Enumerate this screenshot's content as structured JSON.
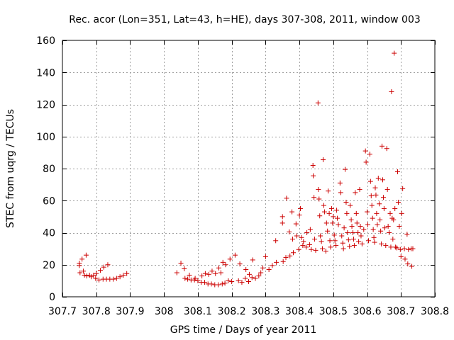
{
  "chart_data": {
    "type": "scatter",
    "title": "Rec. acor (Lon=351, Lat=43, h=HE), days 307-308, 2011, window 003",
    "xlabel": "GPS time / Days of year 2011",
    "ylabel": "STEC from uqrg / TECUs",
    "xlim": [
      307.7,
      308.8
    ],
    "ylim": [
      0,
      160
    ],
    "xticks": [
      "307.7",
      "307.8",
      "307.9",
      "308",
      "308.1",
      "308.2",
      "308.3",
      "308.4",
      "308.5",
      "308.6",
      "308.7",
      "308.8"
    ],
    "yticks": [
      "0",
      "20",
      "40",
      "60",
      "80",
      "100",
      "120",
      "140",
      "160"
    ],
    "grid": true,
    "marker": "+",
    "color": "#cc0000",
    "series": [
      {
        "name": "STEC",
        "points": [
          [
            307.75,
            21.0
          ],
          [
            307.75,
            19.5
          ],
          [
            307.752,
            15.0
          ],
          [
            307.758,
            23.5
          ],
          [
            307.762,
            16.0
          ],
          [
            307.765,
            13.5
          ],
          [
            307.77,
            26.0
          ],
          [
            307.772,
            13.0
          ],
          [
            307.78,
            13.5
          ],
          [
            307.785,
            12.5
          ],
          [
            307.792,
            13.5
          ],
          [
            307.798,
            11.5
          ],
          [
            307.8,
            14.5
          ],
          [
            307.808,
            10.5
          ],
          [
            307.812,
            16.5
          ],
          [
            307.82,
            11.0
          ],
          [
            307.822,
            18.5
          ],
          [
            307.83,
            11.0
          ],
          [
            307.834,
            20.0
          ],
          [
            307.84,
            11.0
          ],
          [
            307.85,
            11.0
          ],
          [
            307.86,
            11.5
          ],
          [
            307.87,
            12.5
          ],
          [
            307.88,
            13.5
          ],
          [
            307.89,
            14.5
          ],
          [
            308.038,
            15.0
          ],
          [
            308.05,
            21.0
          ],
          [
            308.06,
            17.5
          ],
          [
            308.062,
            11.5
          ],
          [
            308.07,
            11.0
          ],
          [
            308.075,
            13.5
          ],
          [
            308.08,
            10.5
          ],
          [
            308.09,
            10.5
          ],
          [
            308.092,
            11.5
          ],
          [
            308.1,
            10.0
          ],
          [
            308.11,
            9.0
          ],
          [
            308.112,
            13.0
          ],
          [
            308.12,
            9.0
          ],
          [
            308.122,
            14.5
          ],
          [
            308.13,
            8.0
          ],
          [
            308.132,
            14.0
          ],
          [
            308.14,
            8.0
          ],
          [
            308.142,
            16.0
          ],
          [
            308.15,
            7.5
          ],
          [
            308.152,
            14.5
          ],
          [
            308.16,
            7.5
          ],
          [
            308.162,
            18.0
          ],
          [
            308.168,
            15.0
          ],
          [
            308.172,
            8.0
          ],
          [
            308.174,
            21.5
          ],
          [
            308.18,
            8.5
          ],
          [
            308.182,
            20.0
          ],
          [
            308.19,
            10.0
          ],
          [
            308.195,
            23.5
          ],
          [
            308.2,
            9.5
          ],
          [
            308.21,
            26.0
          ],
          [
            308.22,
            10.0
          ],
          [
            308.224,
            20.5
          ],
          [
            308.23,
            9.0
          ],
          [
            308.24,
            11.5
          ],
          [
            308.242,
            17.0
          ],
          [
            308.25,
            9.5
          ],
          [
            308.252,
            14.0
          ],
          [
            308.26,
            12.0
          ],
          [
            308.262,
            23.0
          ],
          [
            308.27,
            11.5
          ],
          [
            308.28,
            13.0
          ],
          [
            308.286,
            15.0
          ],
          [
            308.292,
            18.0
          ],
          [
            308.3,
            25.0
          ],
          [
            308.31,
            17.0
          ],
          [
            308.32,
            19.5
          ],
          [
            308.33,
            35.0
          ],
          [
            308.332,
            21.5
          ],
          [
            308.35,
            50.0
          ],
          [
            308.35,
            46.0
          ],
          [
            308.352,
            22.0
          ],
          [
            308.362,
            61.5
          ],
          [
            308.36,
            24.5
          ],
          [
            308.37,
            40.5
          ],
          [
            308.372,
            25.5
          ],
          [
            308.378,
            53.0
          ],
          [
            308.38,
            36.0
          ],
          [
            308.382,
            27.5
          ],
          [
            308.39,
            45.5
          ],
          [
            308.392,
            38.0
          ],
          [
            308.398,
            29.5
          ],
          [
            308.4,
            51.0
          ],
          [
            308.403,
            55.0
          ],
          [
            308.406,
            37.0
          ],
          [
            308.41,
            32.0
          ],
          [
            308.412,
            34.5
          ],
          [
            308.42,
            31.0
          ],
          [
            308.422,
            40.0
          ],
          [
            308.43,
            32.5
          ],
          [
            308.432,
            42.0
          ],
          [
            308.435,
            29.5
          ],
          [
            308.44,
            82.0
          ],
          [
            308.441,
            75.5
          ],
          [
            308.443,
            62.0
          ],
          [
            308.445,
            36.0
          ],
          [
            308.448,
            29.0
          ],
          [
            308.455,
            121.0
          ],
          [
            308.456,
            67.0
          ],
          [
            308.458,
            61.0
          ],
          [
            308.46,
            50.5
          ],
          [
            308.462,
            38.0
          ],
          [
            308.465,
            34.5
          ],
          [
            308.468,
            30.0
          ],
          [
            308.47,
            85.5
          ],
          [
            308.472,
            57.0
          ],
          [
            308.474,
            53.0
          ],
          [
            308.478,
            28.5
          ],
          [
            308.48,
            46.0
          ],
          [
            308.483,
            41.0
          ],
          [
            308.485,
            66.0
          ],
          [
            308.488,
            52.0
          ],
          [
            308.49,
            35.0
          ],
          [
            308.492,
            31.0
          ],
          [
            308.495,
            55.0
          ],
          [
            308.498,
            46.0
          ],
          [
            308.5,
            50.0
          ],
          [
            308.503,
            38.5
          ],
          [
            308.505,
            35.0
          ],
          [
            308.508,
            32.0
          ],
          [
            308.51,
            54.0
          ],
          [
            308.512,
            49.0
          ],
          [
            308.515,
            45.0
          ],
          [
            308.52,
            71.0
          ],
          [
            308.522,
            65.0
          ],
          [
            308.525,
            38.0
          ],
          [
            308.528,
            33.5
          ],
          [
            308.53,
            30.0
          ],
          [
            308.532,
            43.0
          ],
          [
            308.535,
            79.5
          ],
          [
            308.538,
            59.0
          ],
          [
            308.54,
            52.0
          ],
          [
            308.542,
            40.0
          ],
          [
            308.545,
            35.5
          ],
          [
            308.548,
            31.5
          ],
          [
            308.55,
            57.0
          ],
          [
            308.553,
            48.0
          ],
          [
            308.555,
            44.0
          ],
          [
            308.558,
            40.0
          ],
          [
            308.56,
            36.0
          ],
          [
            308.562,
            32.0
          ],
          [
            308.565,
            65.0
          ],
          [
            308.568,
            52.0
          ],
          [
            308.57,
            46.0
          ],
          [
            308.573,
            40.0
          ],
          [
            308.575,
            34.5
          ],
          [
            308.578,
            67.0
          ],
          [
            308.58,
            44.0
          ],
          [
            308.582,
            38.0
          ],
          [
            308.585,
            33.0
          ],
          [
            308.59,
            42.0
          ],
          [
            308.595,
            91.0
          ],
          [
            308.597,
            84.0
          ],
          [
            308.6,
            53.0
          ],
          [
            308.602,
            45.0
          ],
          [
            308.604,
            35.0
          ],
          [
            308.608,
            89.0
          ],
          [
            308.61,
            72.0
          ],
          [
            308.612,
            63.0
          ],
          [
            308.614,
            57.0
          ],
          [
            308.616,
            49.0
          ],
          [
            308.618,
            42.0
          ],
          [
            308.62,
            37.0
          ],
          [
            308.622,
            34.0
          ],
          [
            308.624,
            68.0
          ],
          [
            308.626,
            63.5
          ],
          [
            308.628,
            52.0
          ],
          [
            308.63,
            45.0
          ],
          [
            308.633,
            74.0
          ],
          [
            308.636,
            58.0
          ],
          [
            308.638,
            48.0
          ],
          [
            308.64,
            41.0
          ],
          [
            308.642,
            33.0
          ],
          [
            308.644,
            94.0
          ],
          [
            308.646,
            73.0
          ],
          [
            308.648,
            62.0
          ],
          [
            308.65,
            55.0
          ],
          [
            308.652,
            43.0
          ],
          [
            308.655,
            32.0
          ],
          [
            308.658,
            92.5
          ],
          [
            308.66,
            67.0
          ],
          [
            308.662,
            44.0
          ],
          [
            308.665,
            40.0
          ],
          [
            308.668,
            52.0
          ],
          [
            308.67,
            31.0
          ],
          [
            308.672,
            128.0
          ],
          [
            308.674,
            49.0
          ],
          [
            308.676,
            36.0
          ],
          [
            308.678,
            48.0
          ],
          [
            308.68,
            152.0
          ],
          [
            308.682,
            55.0
          ],
          [
            308.684,
            31.0
          ],
          [
            308.688,
            30.5
          ],
          [
            308.69,
            78.0
          ],
          [
            308.692,
            59.0
          ],
          [
            308.695,
            44.0
          ],
          [
            308.698,
            29.5
          ],
          [
            308.7,
            25.0
          ],
          [
            308.702,
            52.0
          ],
          [
            308.705,
            67.5
          ],
          [
            308.71,
            30.0
          ],
          [
            308.712,
            23.5
          ],
          [
            308.718,
            39.0
          ],
          [
            308.72,
            20.5
          ],
          [
            308.722,
            29.5
          ],
          [
            308.73,
            30.0
          ],
          [
            308.732,
            19.0
          ],
          [
            308.735,
            30.0
          ]
        ]
      }
    ]
  }
}
